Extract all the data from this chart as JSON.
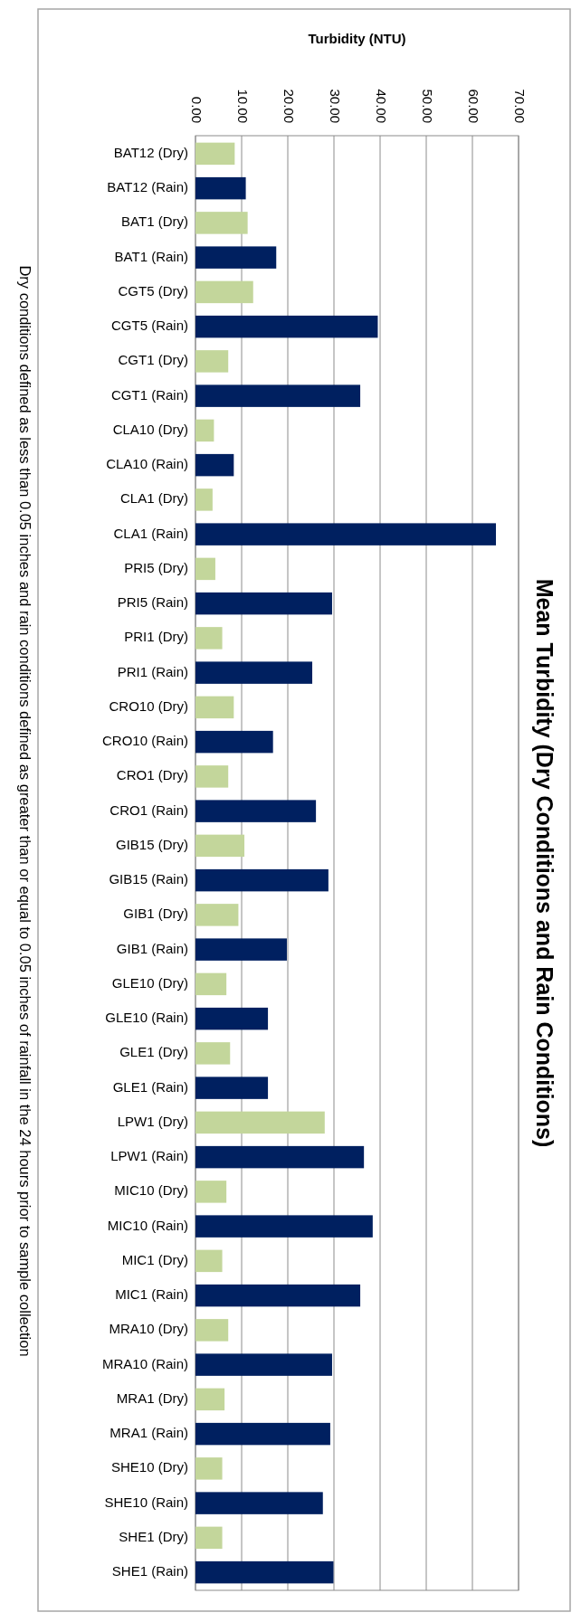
{
  "chart_data": {
    "type": "bar",
    "orientation": "horizontal",
    "title": "Mean Turbidity (Dry Conditions and Rain Conditions)",
    "xlabel": "Turbidity (NTU)",
    "annotations": [
      "Dry conditions defined as less than 0.05 inches and rain conditions defined as greater than or equal to 0.05 inches of rainfall in the 24 hours prior to sample collection"
    ],
    "categories": [
      "BAT12 (Dry)",
      "BAT12 (Rain)",
      "BAT1 (Dry)",
      "BAT1 (Rain)",
      "CGT5 (Dry)",
      "CGT5 (Rain)",
      "CGT1 (Dry)",
      "CGT1 (Rain)",
      "CLA10 (Dry)",
      "CLA10 (Rain)",
      "CLA1 (Dry)",
      "CLA1 (Rain)",
      "PRI5 (Dry)",
      "PRI5 (Rain)",
      "PRI1 (Dry)",
      "PRI1 (Rain)",
      "CRO10 (Dry)",
      "CRO10 (Rain)",
      "CRO1 (Dry)",
      "CRO1 (Rain)",
      "GIB15 (Dry)",
      "GIB15 (Rain)",
      "GIB1 (Dry)",
      "GIB1 (Rain)",
      "GLE10 (Dry)",
      "GLE10 (Rain)",
      "GLE1 (Dry)",
      "GLE1 (Rain)",
      "LPW1 (Dry)",
      "LPW1 (Rain)",
      "MIC10 (Dry)",
      "MIC10 (Rain)",
      "MIC1 (Dry)",
      "MIC1 (Rain)",
      "MRA10 (Dry)",
      "MRA10 (Rain)",
      "MRA1 (Dry)",
      "MRA1 (Rain)",
      "SHE10 (Dry)",
      "SHE10 (Rain)",
      "SHE1 (Dry)",
      "SHE1 (Rain)"
    ],
    "values": [
      8.5,
      10.9,
      11.3,
      17.5,
      12.5,
      39.5,
      7.1,
      35.7,
      4.0,
      8.3,
      3.7,
      65.1,
      4.3,
      29.6,
      5.8,
      25.3,
      8.3,
      16.8,
      7.1,
      26.1,
      10.6,
      28.8,
      9.3,
      19.8,
      6.7,
      15.7,
      7.5,
      15.7,
      28.0,
      36.5,
      6.7,
      38.4,
      5.8,
      35.7,
      7.1,
      29.6,
      6.3,
      29.2,
      5.8,
      27.6,
      5.8,
      29.9
    ],
    "colors": [
      "#c3d69b",
      "#002060",
      "#c3d69b",
      "#002060",
      "#c3d69b",
      "#002060",
      "#c3d69b",
      "#002060",
      "#c3d69b",
      "#002060",
      "#c3d69b",
      "#002060",
      "#c3d69b",
      "#002060",
      "#c3d69b",
      "#002060",
      "#c3d69b",
      "#002060",
      "#c3d69b",
      "#002060",
      "#c3d69b",
      "#002060",
      "#c3d69b",
      "#002060",
      "#c3d69b",
      "#002060",
      "#c3d69b",
      "#002060",
      "#c3d69b",
      "#002060",
      "#c3d69b",
      "#002060",
      "#c3d69b",
      "#002060",
      "#c3d69b",
      "#002060",
      "#c3d69b",
      "#002060",
      "#c3d69b",
      "#002060",
      "#c3d69b",
      "#002060"
    ],
    "xlim": [
      0,
      70
    ],
    "xticks": [
      {
        "value": 0,
        "label": "0.00"
      },
      {
        "value": 10,
        "label": "10.00"
      },
      {
        "value": 20,
        "label": "20.00"
      },
      {
        "value": 30,
        "label": "30.00"
      },
      {
        "value": 40,
        "label": "40.00"
      },
      {
        "value": 50,
        "label": "50.00"
      },
      {
        "value": 60,
        "label": "60.00"
      },
      {
        "value": 70,
        "label": "70.00"
      }
    ],
    "grid": "x"
  }
}
